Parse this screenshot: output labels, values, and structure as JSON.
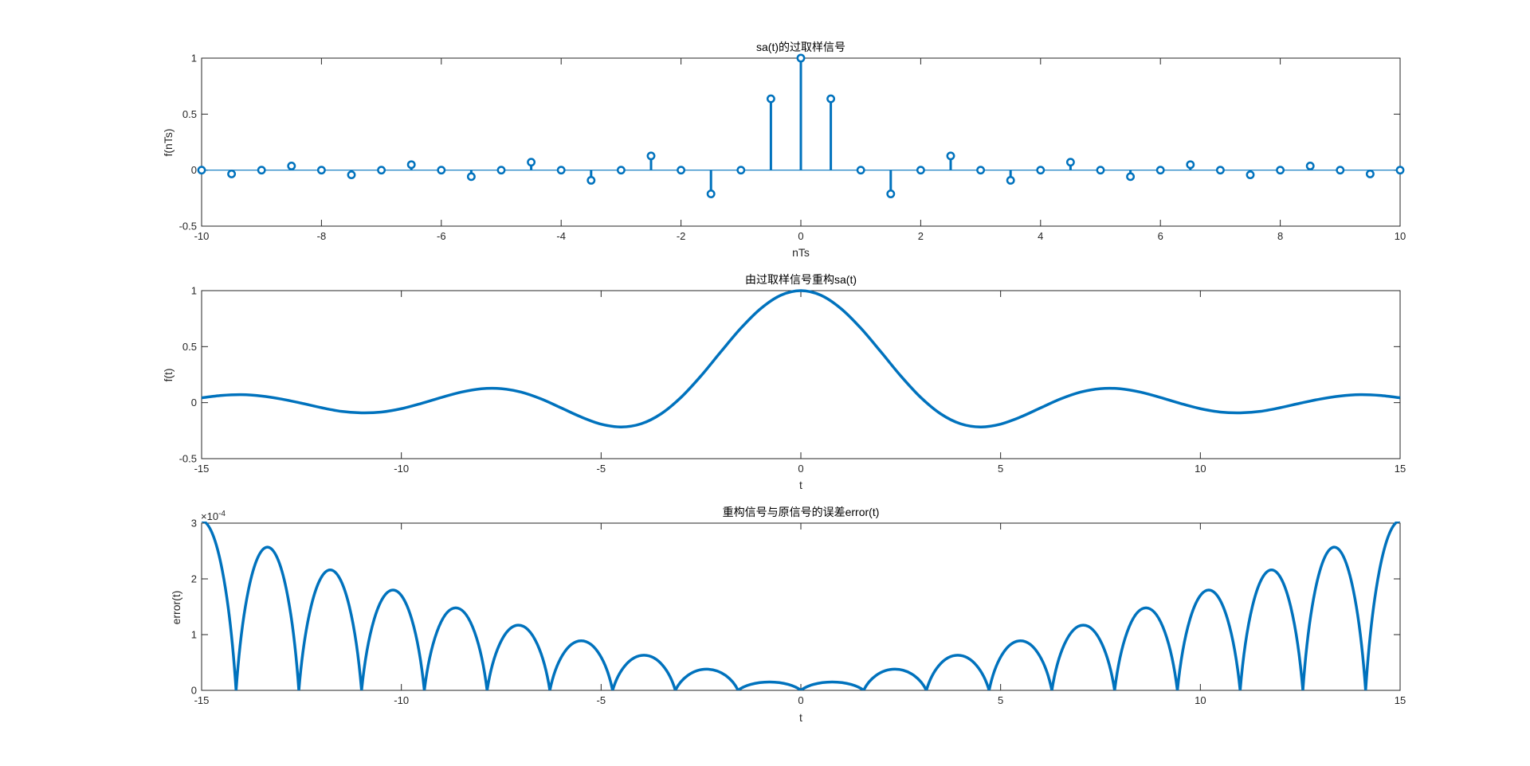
{
  "figure": {
    "background": "#ffffff",
    "series_color": "#0072BD",
    "axis_color": "#262626"
  },
  "chart_data": [
    {
      "id": "plot1",
      "type": "stem",
      "title": "sa(t)的过取样信号",
      "xlabel": "nTs",
      "ylabel": "f(nTs)",
      "xlim": [
        -10,
        10
      ],
      "ylim": [
        -0.5,
        1
      ],
      "xticks": [
        "-10",
        "-8",
        "-6",
        "-4",
        "-2",
        "0",
        "2",
        "4",
        "6",
        "8",
        "10"
      ],
      "yticks": [
        "-0.5",
        "0",
        "0.5",
        "1"
      ],
      "marker": "circle",
      "color": "#0072BD",
      "x": [
        -10,
        -9.5,
        -9,
        -8.5,
        -8,
        -7.5,
        -7,
        -6.5,
        -6,
        -5.5,
        -5,
        -4.5,
        -4,
        -3.5,
        -3,
        -2.5,
        -2,
        -1.5,
        -1,
        -0.5,
        0,
        0.5,
        1,
        1.5,
        2,
        2.5,
        3,
        3.5,
        4,
        4.5,
        5,
        5.5,
        6,
        6.5,
        7,
        7.5,
        8,
        8.5,
        9,
        9.5,
        10
      ],
      "y": [
        0,
        -0.034,
        0,
        0.037,
        0,
        -0.042,
        0,
        0.049,
        0,
        -0.058,
        0,
        0.071,
        0,
        -0.091,
        0,
        0.127,
        0,
        -0.212,
        0,
        0.637,
        1,
        0.637,
        0,
        -0.212,
        0,
        0.127,
        0,
        -0.091,
        0,
        0.071,
        0,
        -0.058,
        0,
        0.049,
        0,
        -0.042,
        0,
        0.037,
        0,
        -0.034,
        0
      ]
    },
    {
      "id": "plot2",
      "type": "line",
      "title": "由过取样信号重构sa(t)",
      "xlabel": "t",
      "ylabel": "f(t)",
      "xlim": [
        -15,
        15
      ],
      "ylim": [
        -0.5,
        1
      ],
      "xticks": [
        "-15",
        "-10",
        "-5",
        "0",
        "5",
        "10",
        "15"
      ],
      "yticks": [
        "-0.5",
        "0",
        "0.5",
        "1"
      ],
      "color": "#0072BD",
      "x": [
        -15,
        -14.5,
        -14,
        -13.5,
        -13,
        -12.5,
        -12,
        -11.5,
        -11,
        -10.5,
        -10,
        -9.5,
        -9,
        -8.5,
        -8,
        -7.5,
        -7,
        -6.5,
        -6,
        -5.5,
        -5,
        -4.5,
        -4,
        -3.5,
        -3,
        -2.5,
        -2,
        -1.5,
        -1,
        -0.5,
        0,
        0.5,
        1,
        1.5,
        2,
        2.5,
        3,
        3.5,
        4,
        4.5,
        5,
        5.5,
        6,
        6.5,
        7,
        7.5,
        8,
        8.5,
        9,
        9.5,
        10,
        10.5,
        11,
        11.5,
        12,
        12.5,
        13,
        13.5,
        14,
        14.5,
        15
      ],
      "y": [
        0.043,
        0.064,
        0.071,
        0.059,
        0.032,
        -0.005,
        -0.045,
        -0.078,
        -0.091,
        -0.084,
        -0.054,
        -0.007,
        0.046,
        0.094,
        0.124,
        0.125,
        0.094,
        0.033,
        -0.047,
        -0.128,
        -0.192,
        -0.217,
        -0.189,
        -0.1,
        0.047,
        0.239,
        0.455,
        0.665,
        0.841,
        0.959,
        1,
        0.959,
        0.841,
        0.665,
        0.455,
        0.239,
        0.047,
        -0.1,
        -0.189,
        -0.217,
        -0.192,
        -0.128,
        -0.047,
        0.033,
        0.094,
        0.125,
        0.124,
        0.094,
        0.046,
        -0.007,
        -0.054,
        -0.084,
        -0.091,
        -0.078,
        -0.045,
        -0.005,
        0.032,
        0.059,
        0.071,
        0.064,
        0.043
      ]
    },
    {
      "id": "plot3",
      "type": "line",
      "title": "重构信号与原信号的误差error(t)",
      "xlabel": "t",
      "ylabel": "error(t)",
      "exponent_label": "×10",
      "exponent_power": "-4",
      "xlim": [
        -15,
        15
      ],
      "ylim": [
        0,
        3
      ],
      "xticks": [
        "-15",
        "-10",
        "-5",
        "0",
        "5",
        "10",
        "15"
      ],
      "yticks": [
        "0",
        "1",
        "2",
        "3"
      ],
      "color": "#0072BD",
      "zeros": [
        -14.137,
        -12.566,
        -10.996,
        -9.425,
        -7.854,
        -6.283,
        -4.712,
        -3.142,
        -1.571,
        0,
        1.571,
        3.142,
        4.712,
        6.283,
        7.854,
        9.425,
        10.996,
        12.566,
        14.137
      ],
      "peaks": [
        {
          "x": -15,
          "y": 3.04
        },
        {
          "x": -13.352,
          "y": 2.57
        },
        {
          "x": -11.781,
          "y": 2.16
        },
        {
          "x": -10.21,
          "y": 1.8
        },
        {
          "x": -8.639,
          "y": 1.48
        },
        {
          "x": -7.069,
          "y": 1.17
        },
        {
          "x": -5.498,
          "y": 0.89
        },
        {
          "x": -3.927,
          "y": 0.63
        },
        {
          "x": -2.356,
          "y": 0.38
        },
        {
          "x": -0.785,
          "y": 0.15
        },
        {
          "x": 0.785,
          "y": 0.15
        },
        {
          "x": 2.356,
          "y": 0.38
        },
        {
          "x": 3.927,
          "y": 0.63
        },
        {
          "x": 5.498,
          "y": 0.89
        },
        {
          "x": 7.069,
          "y": 1.17
        },
        {
          "x": 8.639,
          "y": 1.48
        },
        {
          "x": 10.21,
          "y": 1.8
        },
        {
          "x": 11.781,
          "y": 2.16
        },
        {
          "x": 13.352,
          "y": 2.57
        },
        {
          "x": 15,
          "y": 3.04
        }
      ]
    }
  ]
}
